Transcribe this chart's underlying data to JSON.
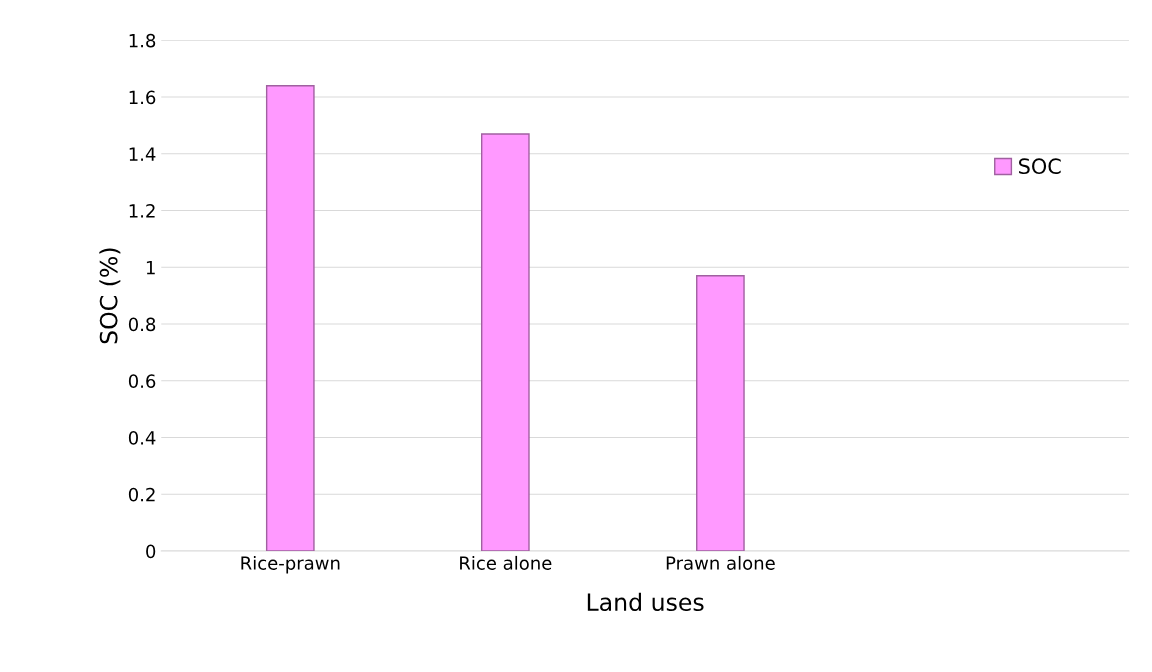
{
  "chart_data": {
    "type": "bar",
    "xlabel": "Land uses",
    "ylabel": "SOC (%)",
    "categories": [
      "Rice-prawn",
      "Rice alone",
      "Prawn alone"
    ],
    "series": [
      {
        "name": "SOC",
        "color": "#ff99ff",
        "values": [
          1.64,
          1.47,
          0.97
        ]
      }
    ],
    "ylim": [
      0,
      1.8
    ],
    "yticks": [
      0,
      0.2,
      0.4,
      0.6,
      0.8,
      1,
      1.2,
      1.4,
      1.6,
      1.8
    ],
    "grid": "y",
    "legend": "right"
  }
}
